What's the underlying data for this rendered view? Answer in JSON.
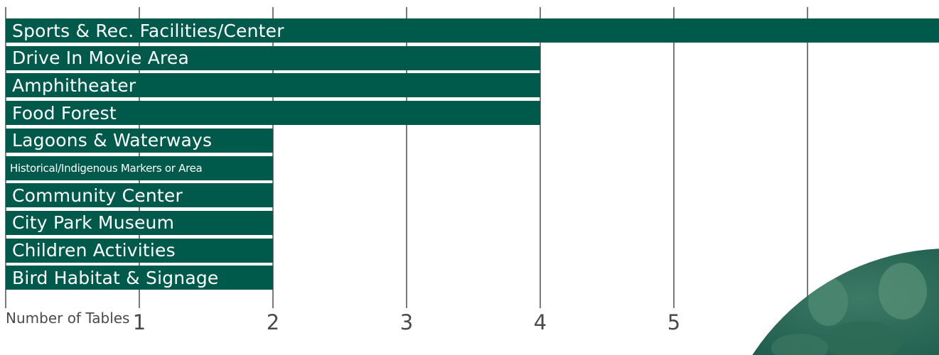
{
  "chart_data": {
    "type": "bar",
    "orientation": "horizontal",
    "categories": [
      "Sports & Rec. Facilities/Center",
      "Drive In Movie Area",
      "Amphitheater",
      "Food Forest",
      "Lagoons & Waterways",
      "Historical/Indigenous Markers or Area",
      "Community Center",
      "City Park Museum",
      "Children Activities",
      "Bird Habitat & Signage"
    ],
    "values": [
      7,
      4,
      4,
      4,
      2,
      2,
      2,
      2,
      2,
      2
    ],
    "title": "",
    "xlabel": "Number of Tables",
    "xticks": [
      "1",
      "2",
      "3",
      "4",
      "5"
    ],
    "xlim": [
      0,
      7
    ],
    "grid": true,
    "bar_color": "#005a4b",
    "gridline_color": "#7a7a7a",
    "decoration": "photo-quarter-circle"
  }
}
